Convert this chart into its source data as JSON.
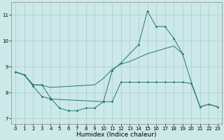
{
  "xlabel": "Humidex (Indice chaleur)",
  "background_color": "#cce8e8",
  "grid_color": "#aacece",
  "line_color": "#217a6e",
  "xlim": [
    -0.5,
    23.5
  ],
  "ylim": [
    6.8,
    11.5
  ],
  "yticks": [
    7,
    8,
    9,
    10,
    11
  ],
  "xticks": [
    0,
    1,
    2,
    3,
    4,
    5,
    6,
    7,
    8,
    9,
    10,
    11,
    12,
    13,
    14,
    15,
    16,
    17,
    18,
    19,
    20,
    21,
    22,
    23
  ],
  "series1_x": [
    0,
    1,
    2,
    3,
    4,
    5,
    6,
    7,
    8,
    9,
    10,
    11,
    12,
    13,
    14,
    15,
    16,
    17,
    18,
    19,
    20,
    21,
    22,
    23
  ],
  "series1_y": [
    8.8,
    8.68,
    8.3,
    8.3,
    7.78,
    7.4,
    7.3,
    7.3,
    7.4,
    7.4,
    7.65,
    7.65,
    8.4,
    8.4,
    8.4,
    8.4,
    8.4,
    8.4,
    8.4,
    8.4,
    8.35,
    7.45,
    7.55,
    7.45
  ],
  "series2_x": [
    0,
    1,
    2,
    3,
    4,
    10,
    11,
    12,
    14,
    15,
    16,
    17,
    18,
    19
  ],
  "series2_y": [
    8.8,
    8.68,
    8.25,
    7.85,
    7.75,
    7.65,
    8.85,
    9.15,
    9.85,
    11.15,
    10.55,
    10.55,
    10.1,
    9.5
  ],
  "series3_x": [
    0,
    1,
    2,
    3,
    4,
    9,
    10,
    11,
    12,
    13,
    14,
    15,
    16,
    17,
    18,
    19,
    20,
    21,
    22,
    23
  ],
  "series3_y": [
    8.8,
    8.68,
    8.3,
    8.28,
    8.2,
    8.3,
    8.55,
    8.9,
    9.1,
    9.2,
    9.35,
    9.5,
    9.6,
    9.7,
    9.8,
    9.5,
    8.4,
    7.45,
    7.55,
    7.45
  ]
}
